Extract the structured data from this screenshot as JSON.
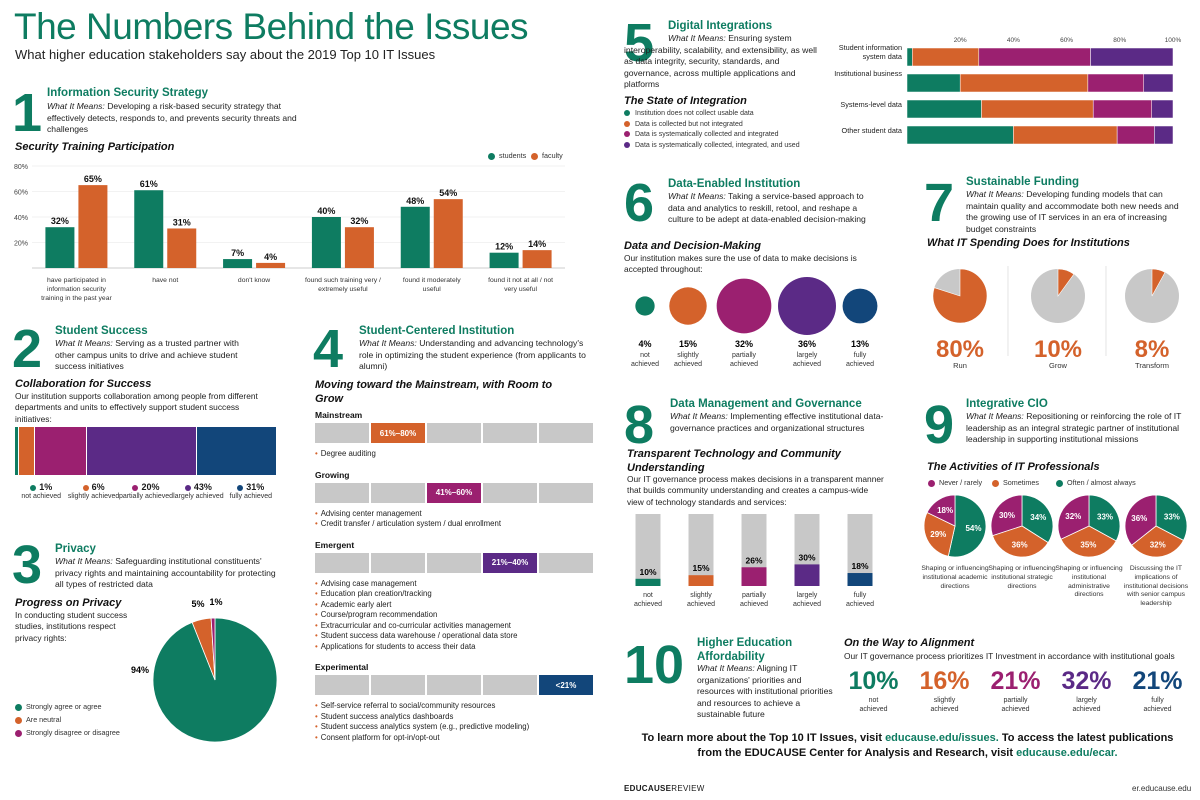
{
  "header": {
    "title": "The Numbers Behind the Issues",
    "subtitle": "What higher education stakeholders say about the 2019 Top 10 IT Issues"
  },
  "colors": {
    "green": "#0e7c61",
    "orange": "#d4622b",
    "magenta": "#9b2070",
    "purple": "#5b2a86",
    "navy": "#12467a",
    "gray": "#c8c8c8"
  },
  "s1": {
    "num": "1",
    "title": "Information Security Strategy",
    "what": "What It Means:",
    "desc": "Developing a risk-based security strategy that effectively detects, responds to, and prevents security threats and challenges",
    "chart_title": "Security Training Participation",
    "legend": [
      "students",
      "faculty"
    ]
  },
  "s2": {
    "num": "2",
    "title": "Student Success",
    "what": "What It Means:",
    "desc": "Serving as a trusted partner with other campus units to drive and achieve student success initiatives",
    "chart_title": "Collaboration for Success",
    "question": "Our institution supports collaboration among people from different departments and units to effectively support student success initiatives:"
  },
  "s3": {
    "num": "3",
    "title": "Privacy",
    "what": "What It Means:",
    "desc": "Safeguarding institutional constituents' privacy rights and maintaining accountability for protecting all types of restricted data",
    "chart_title": "Progress on Privacy",
    "question": "In conducting student success studies, institutions respect privacy rights:"
  },
  "s4": {
    "num": "4",
    "title": "Student-Centered Institution",
    "what": "What It Means:",
    "desc": "Understanding and advancing technology's role in optimizing the student experience (from applicants to alumni)",
    "chart_title": "Moving toward the Mainstream, with Room to Grow",
    "groups": [
      {
        "name": "Mainstream",
        "label": "61%–80%",
        "pos": 2,
        "color": "#d4622b",
        "items": [
          "Degree auditing"
        ]
      },
      {
        "name": "Growing",
        "label": "41%–60%",
        "pos": 3,
        "color": "#9b2070",
        "items": [
          "Advising center management",
          "Credit transfer / articulation system / dual enrollment"
        ]
      },
      {
        "name": "Emergent",
        "label": "21%–40%",
        "pos": 4,
        "color": "#5b2a86",
        "items": [
          "Advising case management",
          "Education plan creation/tracking",
          "Academic early alert",
          "Course/program recommendation",
          "Extracurricular and co-curricular activities management",
          "Student success data warehouse / operational data store",
          "Applications for students to access their data"
        ]
      },
      {
        "name": "Experimental",
        "label": "<21%",
        "pos": 5,
        "color": "#12467a",
        "items": [
          "Self-service referral to social/community resources",
          "Student success analytics dashboards",
          "Student success analytics system (e.g., predictive modeling)",
          "Consent platform for opt-in/opt-out"
        ]
      }
    ]
  },
  "s5": {
    "num": "5",
    "title": "Digital Integrations",
    "what": "What It Means:",
    "desc": "Ensuring system interoperability, scalability, and extensibility, as well as data integrity, security, standards, and governance, across multiple applications and platforms",
    "chart_title": "The State of Integration",
    "legend": [
      "Institution does not collect usable data",
      "Data is collected but not integrated",
      "Data is systematically collected and integrated",
      "Data is systematically collected, integrated, and used"
    ]
  },
  "s6": {
    "num": "6",
    "title": "Data-Enabled Institution",
    "what": "What It Means:",
    "desc": "Taking a service-based approach to data and analytics to reskill, retool, and reshape a culture to be adept at data-enabled decision-making",
    "chart_title": "Data and Decision-Making",
    "question": "Our institution makes sure the use of data to make decisions is accepted throughout:"
  },
  "s7": {
    "num": "7",
    "title": "Sustainable Funding",
    "what": "What It Means:",
    "desc": "Developing funding models that can maintain quality and accommodate both new needs and the growing use of IT services in an era of increasing budget constraints",
    "chart_title": "What IT Spending Does for Institutions"
  },
  "s8": {
    "num": "8",
    "title": "Data Management and Governance",
    "what": "What It Means:",
    "desc": "Implementing effective institutional data-governance practices and organizational structures",
    "chart_title": "Transparent Technology and Community Understanding",
    "question": "Our IT governance process makes decisions in a transparent manner that builds community understanding and creates a campus-wide view of technology standards and services:"
  },
  "s9": {
    "num": "9",
    "title": "Integrative CIO",
    "what": "What It Means:",
    "desc": "Repositioning or reinforcing the role of IT leadership as an integral strategic partner of institutional leadership in supporting institutional missions",
    "chart_title": "The Activities of IT Professionals",
    "legend": [
      "Never / rarely",
      "Sometimes",
      "Often / almost always"
    ]
  },
  "s10": {
    "num": "10",
    "title": "Higher Education Affordability",
    "what": "What It Means:",
    "desc": "Aligning IT organizations' priorities and resources with institutional priorities and resources to achieve a sustainable future",
    "chart_title": "On the Way to Alignment",
    "question": "Our IT governance process prioritizes IT Investment in accordance with institutional goals"
  },
  "footer": {
    "cta_line1": "To learn more about the Top 10 IT Issues, visit ",
    "cta_link1": "educause.edu/issues.",
    "cta_line1b": " To access the latest publications",
    "cta_line2": "from the EDUCAUSE Center for Analysis and Research, visit ",
    "cta_link2": "educause.edu/ecar.",
    "brand": "EDUCAUSE",
    "brand2": "REVIEW",
    "url": "er.educause.edu"
  },
  "chart_data": [
    {
      "type": "bar",
      "title": "Security Training Participation",
      "categories": [
        "have participated in information security training in the past year",
        "have not",
        "don't know",
        "found such training very / extremely useful",
        "found it moderately useful",
        "found it not at all / not very useful"
      ],
      "series": [
        {
          "name": "students",
          "values": [
            32,
            61,
            7,
            40,
            48,
            12
          ]
        },
        {
          "name": "faculty",
          "values": [
            65,
            31,
            4,
            32,
            54,
            14
          ]
        }
      ],
      "ylim": [
        0,
        80
      ],
      "yticks": [
        "80%",
        "60%",
        "40%",
        "20%"
      ]
    },
    {
      "type": "bar",
      "title": "Collaboration for Success",
      "categories": [
        "not achieved",
        "slightly achieved",
        "partially achieved",
        "largely achieved",
        "fully achieved"
      ],
      "values": [
        1,
        6,
        20,
        43,
        31
      ],
      "labels": [
        "1%",
        "6%",
        "20%",
        "43%",
        "31%"
      ]
    },
    {
      "type": "pie",
      "title": "Progress on Privacy",
      "categories": [
        "Strongly agree or agree",
        "Are neutral",
        "Strongly disagree or disagree"
      ],
      "values": [
        94,
        5,
        1
      ],
      "labels": [
        "94%",
        "5%",
        "1%"
      ]
    },
    {
      "type": "bar",
      "title": "The State of Integration",
      "categories": [
        "Student information system data",
        "Institutional business",
        "Systems-level data",
        "Other student data"
      ],
      "series": [
        {
          "name": "Institution does not collect usable data",
          "values": [
            2,
            20,
            28,
            40
          ]
        },
        {
          "name": "Data is collected but not integrated",
          "values": [
            25,
            48,
            42,
            39
          ]
        },
        {
          "name": "Data is systematically collected and integrated",
          "values": [
            42,
            21,
            22,
            14
          ]
        },
        {
          "name": "Data is systematically collected, integrated, and used",
          "values": [
            31,
            11,
            8,
            7
          ]
        }
      ],
      "xticks": [
        "20%",
        "40%",
        "60%",
        "80%",
        "100%"
      ]
    },
    {
      "type": "scatter",
      "title": "Data and Decision-Making",
      "categories": [
        "not achieved",
        "slightly achieved",
        "partially achieved",
        "largely achieved",
        "fully achieved"
      ],
      "values": [
        4,
        15,
        32,
        36,
        13
      ],
      "labels": [
        "4%",
        "15%",
        "32%",
        "36%",
        "13%"
      ]
    },
    {
      "type": "pie",
      "title": "What IT Spending Does for Institutions",
      "categories": [
        "Run",
        "Grow",
        "Transform"
      ],
      "values": [
        80,
        10,
        8
      ],
      "labels": [
        "80%",
        "10%",
        "8%"
      ]
    },
    {
      "type": "bar",
      "title": "Transparent Technology and Community Understanding",
      "categories": [
        "not achieved",
        "slightly achieved",
        "partially achieved",
        "largely achieved",
        "fully achieved"
      ],
      "values": [
        10,
        15,
        26,
        30,
        18
      ],
      "labels": [
        "10%",
        "15%",
        "26%",
        "30%",
        "18%"
      ]
    },
    {
      "type": "pie",
      "title": "The Activities of IT Professionals",
      "categories": [
        "Shaping or influencing institutional academic directions",
        "Shaping or influencing institutional strategic directions",
        "Shaping or influencing institutional administrative directions",
        "Discussing the IT implications of institutional decisions with senior campus leadership"
      ],
      "series": [
        {
          "name": "Never / rarely",
          "values": [
            18,
            30,
            32,
            36
          ]
        },
        {
          "name": "Sometimes",
          "values": [
            29,
            36,
            35,
            32
          ]
        },
        {
          "name": "Often / almost always",
          "values": [
            54,
            34,
            33,
            33
          ]
        }
      ]
    },
    {
      "type": "table",
      "title": "On the Way to Alignment",
      "categories": [
        "not achieved",
        "slightly achieved",
        "partially achieved",
        "largely achieved",
        "fully achieved"
      ],
      "values": [
        10,
        16,
        21,
        32,
        21
      ],
      "labels": [
        "10%",
        "16%",
        "21%",
        "32%",
        "21%"
      ]
    }
  ]
}
